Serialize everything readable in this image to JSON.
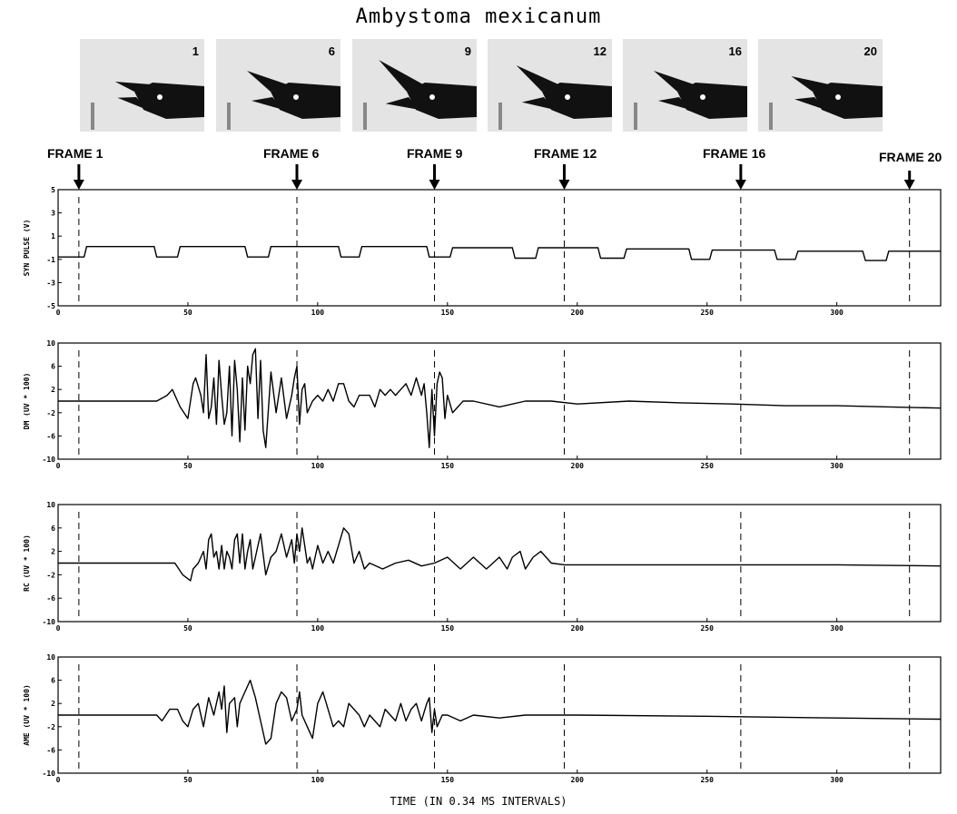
{
  "title": "Ambystoma mexicanum",
  "photos": [
    {
      "number": "1"
    },
    {
      "number": "6"
    },
    {
      "number": "9"
    },
    {
      "number": "12"
    },
    {
      "number": "16"
    },
    {
      "number": "20"
    }
  ],
  "frame_markers": [
    {
      "label": "FRAME 1",
      "x": 8
    },
    {
      "label": "FRAME 6",
      "x": 92
    },
    {
      "label": "FRAME 9",
      "x": 145
    },
    {
      "label": "FRAME 12",
      "x": 195
    },
    {
      "label": "FRAME 16",
      "x": 263
    },
    {
      "label": "FRAME 20",
      "x": 328
    }
  ],
  "xlabel": "TIME (IN 0.34 MS INTERVALS)",
  "chart_data": [
    {
      "type": "line",
      "ylabel": "SYN PULSE (V)",
      "xlim": [
        0,
        340
      ],
      "ylim": [
        -5,
        5
      ],
      "xticks": [
        0,
        50,
        100,
        150,
        200,
        250,
        300
      ],
      "yticks": [
        5,
        3,
        1,
        -1,
        -3,
        -5
      ],
      "ytick_labels": [
        "5",
        "3",
        "1",
        "-1",
        "-3",
        "-5"
      ],
      "series": [
        {
          "x": [
            0,
            10,
            11,
            37,
            38,
            46,
            47,
            72,
            73,
            81,
            82,
            108,
            109,
            116,
            117,
            142,
            143,
            151,
            152,
            175,
            176,
            184,
            185,
            208,
            209,
            218,
            219,
            243,
            244,
            251,
            252,
            276,
            277,
            284,
            285,
            310,
            311,
            319,
            320,
            340
          ],
          "y": [
            -0.8,
            -0.8,
            0.1,
            0.1,
            -0.8,
            -0.8,
            0.1,
            0.1,
            -0.8,
            -0.8,
            0.1,
            0.1,
            -0.8,
            -0.8,
            0.1,
            0.1,
            -0.8,
            -0.8,
            0.0,
            0.0,
            -0.9,
            -0.9,
            0.0,
            0.0,
            -0.9,
            -0.9,
            -0.1,
            -0.1,
            -1.0,
            -1.0,
            -0.2,
            -0.2,
            -1.0,
            -1.0,
            -0.3,
            -0.3,
            -1.1,
            -1.1,
            -0.3,
            -0.3
          ]
        }
      ]
    },
    {
      "type": "line",
      "ylabel": "DM (UV * 100)",
      "xlim": [
        0,
        340
      ],
      "ylim": [
        -10,
        10
      ],
      "xticks": [
        0,
        50,
        100,
        150,
        200,
        250,
        300
      ],
      "yticks": [
        10,
        6,
        2,
        -2,
        -6,
        -10
      ],
      "ytick_labels": [
        "10",
        "6",
        "2",
        "-2",
        "-6",
        "-10"
      ],
      "series": [
        {
          "x": [
            0,
            38,
            42,
            44,
            47,
            50,
            52,
            53,
            55,
            56,
            57,
            58,
            59,
            60,
            61,
            62,
            63,
            64,
            65,
            66,
            67,
            68,
            69,
            70,
            71,
            72,
            73,
            74,
            75,
            76,
            77,
            78,
            79,
            80,
            82,
            84,
            86,
            88,
            90,
            91,
            92,
            93,
            94,
            95,
            96,
            98,
            100,
            102,
            104,
            106,
            108,
            110,
            112,
            114,
            116,
            118,
            120,
            122,
            124,
            126,
            128,
            130,
            132,
            134,
            136,
            138,
            140,
            141,
            142,
            143,
            144,
            145,
            146,
            147,
            148,
            149,
            150,
            152,
            154,
            156,
            160,
            170,
            180,
            190,
            200,
            220,
            240,
            260,
            280,
            300,
            320,
            340
          ],
          "y": [
            0,
            0,
            1,
            2,
            -1,
            -3,
            3,
            4,
            1,
            -2,
            8,
            -3,
            -1,
            4,
            -4,
            7,
            1,
            -4,
            -2,
            6,
            -6,
            7,
            2,
            -7,
            4,
            -5,
            6,
            3,
            8,
            9,
            -3,
            7,
            -5,
            -8,
            5,
            -2,
            4,
            -3,
            1,
            4,
            6,
            -4,
            2,
            3,
            -2,
            0,
            1,
            0,
            2,
            0,
            3,
            3,
            0,
            -1,
            1,
            1,
            1,
            -1,
            2,
            1,
            2,
            1,
            2,
            3,
            1,
            4,
            1,
            3,
            -2,
            -8,
            2,
            -6,
            3,
            5,
            4,
            -3,
            1,
            -2,
            -1,
            0,
            0,
            -1,
            0,
            0,
            -0.5,
            0,
            -0.3,
            -0.5,
            -0.8,
            -0.8,
            -1,
            -1.2
          ]
        }
      ]
    },
    {
      "type": "line",
      "ylabel": "RC (UV * 100)",
      "xlim": [
        0,
        340
      ],
      "ylim": [
        -10,
        10
      ],
      "xticks": [
        0,
        50,
        100,
        150,
        200,
        250,
        300
      ],
      "yticks": [
        10,
        6,
        2,
        -2,
        -6,
        -10
      ],
      "ytick_labels": [
        "10",
        "6",
        "2",
        "-2",
        "-6",
        "-10"
      ],
      "series": [
        {
          "x": [
            0,
            45,
            48,
            51,
            52,
            54,
            56,
            57,
            58,
            59,
            60,
            61,
            62,
            63,
            64,
            65,
            66,
            67,
            68,
            69,
            70,
            71,
            72,
            73,
            74,
            75,
            76,
            77,
            78,
            80,
            82,
            84,
            86,
            88,
            90,
            91,
            92,
            93,
            94,
            95,
            96,
            97,
            98,
            100,
            102,
            104,
            106,
            108,
            110,
            112,
            114,
            116,
            118,
            120,
            125,
            130,
            135,
            140,
            145,
            150,
            155,
            160,
            165,
            170,
            173,
            175,
            178,
            180,
            183,
            186,
            190,
            195,
            200,
            250,
            300,
            340
          ],
          "y": [
            0,
            0,
            -2,
            -3,
            -1,
            0,
            2,
            -1,
            4,
            5,
            1,
            2,
            -1,
            3,
            -1,
            2,
            1,
            -1,
            4,
            5,
            0,
            5,
            -1,
            2,
            4,
            -1,
            1,
            3,
            5,
            -2,
            1,
            2,
            5,
            1,
            4,
            0,
            5,
            2,
            6,
            3,
            0,
            1,
            -1,
            3,
            0,
            2,
            0,
            3,
            6,
            5,
            0,
            2,
            -1,
            0,
            -1,
            0,
            0.5,
            -0.5,
            0,
            1,
            -1,
            1,
            -1,
            1,
            -1,
            1,
            2,
            -1,
            1,
            2,
            0,
            -0.3,
            -0.3,
            -0.3,
            -0.3,
            -0.5
          ]
        }
      ]
    },
    {
      "type": "line",
      "ylabel": "AME (UV * 100)",
      "xlim": [
        0,
        340
      ],
      "ylim": [
        -10,
        10
      ],
      "xticks": [
        0,
        50,
        100,
        150,
        200,
        250,
        300
      ],
      "yticks": [
        10,
        6,
        2,
        -2,
        -6,
        -10
      ],
      "ytick_labels": [
        "10",
        "6",
        "2",
        "-2",
        "-6",
        "-10"
      ],
      "series": [
        {
          "x": [
            0,
            38,
            40,
            43,
            46,
            48,
            50,
            52,
            54,
            56,
            58,
            60,
            62,
            63,
            64,
            65,
            66,
            68,
            69,
            70,
            72,
            74,
            76,
            78,
            80,
            82,
            84,
            86,
            88,
            90,
            92,
            93,
            94,
            96,
            98,
            100,
            102,
            104,
            106,
            108,
            110,
            112,
            114,
            116,
            118,
            120,
            122,
            124,
            126,
            128,
            130,
            132,
            134,
            136,
            138,
            140,
            142,
            143,
            144,
            145,
            146,
            148,
            150,
            155,
            160,
            170,
            180,
            200,
            250,
            300,
            340
          ],
          "y": [
            0,
            0,
            -1,
            1,
            1,
            -1,
            -2,
            1,
            2,
            -2,
            3,
            0,
            4,
            1,
            5,
            -3,
            2,
            3,
            -2,
            2,
            4,
            6,
            3,
            -1,
            -5,
            -4,
            2,
            4,
            3,
            -1,
            1,
            4,
            0,
            -2,
            -4,
            2,
            4,
            1,
            -2,
            -1,
            -2,
            2,
            1,
            0,
            -2,
            0,
            -1,
            -2,
            1,
            0,
            -1,
            2,
            -1,
            1,
            2,
            -1,
            2,
            3,
            -3,
            1,
            -2,
            0,
            0,
            -1,
            0,
            -0.5,
            0,
            0,
            -0.2,
            -0.5,
            -0.7
          ]
        }
      ]
    }
  ]
}
